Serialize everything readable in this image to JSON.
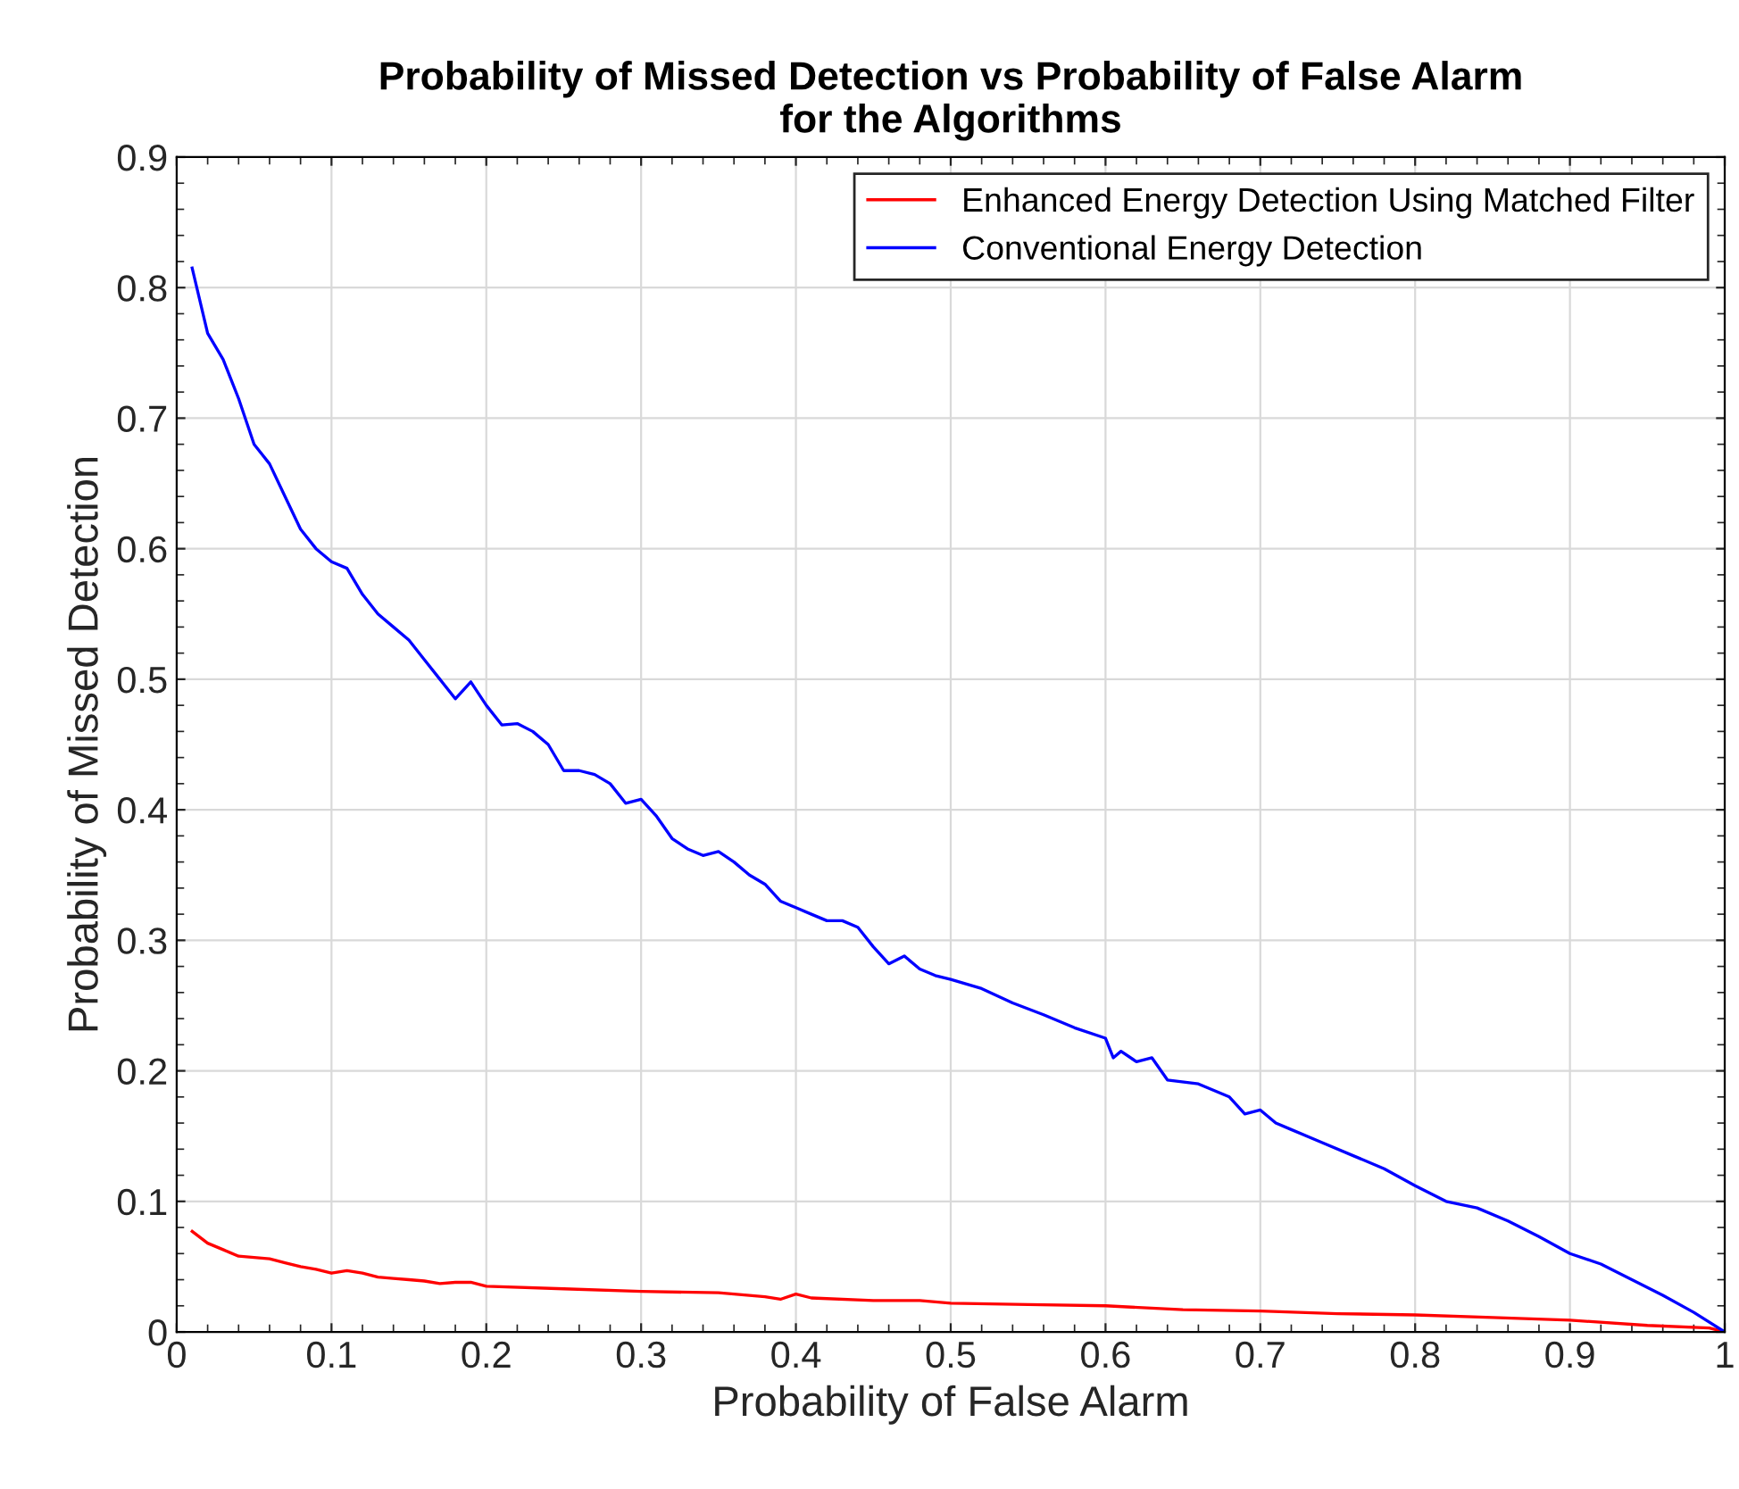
{
  "chart_data": {
    "type": "line",
    "title": "Probability of Missed Detection vs Probability of False Alarm\nfor the Algorithms",
    "xlabel": "Probability of False Alarm",
    "ylabel": "Probability of Missed Detection",
    "xlim": [
      0,
      1
    ],
    "ylim": [
      0,
      0.9
    ],
    "xticks": [
      0,
      0.1,
      0.2,
      0.3,
      0.4,
      0.5,
      0.6,
      0.7,
      0.8,
      0.9,
      1
    ],
    "yticks": [
      0,
      0.1,
      0.2,
      0.3,
      0.4,
      0.5,
      0.6,
      0.7,
      0.8,
      0.9
    ],
    "grid": true,
    "legend": "top right",
    "line_style": "solid",
    "marker": "none",
    "series": [
      {
        "name": "Enhanced Energy Detection Using Matched Filter",
        "color": "#ff0000",
        "x": [
          0.01,
          0.02,
          0.03,
          0.04,
          0.05,
          0.06,
          0.07,
          0.08,
          0.09,
          0.1,
          0.11,
          0.12,
          0.13,
          0.14,
          0.15,
          0.16,
          0.17,
          0.18,
          0.19,
          0.2,
          0.25,
          0.3,
          0.35,
          0.38,
          0.39,
          0.4,
          0.41,
          0.45,
          0.48,
          0.5,
          0.55,
          0.6,
          0.65,
          0.7,
          0.75,
          0.8,
          0.85,
          0.9,
          0.95,
          0.99,
          1.0
        ],
        "values": [
          0.077,
          0.068,
          0.063,
          0.058,
          0.057,
          0.056,
          0.053,
          0.05,
          0.048,
          0.045,
          0.047,
          0.045,
          0.042,
          0.041,
          0.04,
          0.039,
          0.037,
          0.038,
          0.038,
          0.035,
          0.033,
          0.031,
          0.03,
          0.027,
          0.025,
          0.029,
          0.026,
          0.024,
          0.024,
          0.022,
          0.021,
          0.02,
          0.017,
          0.016,
          0.014,
          0.013,
          0.011,
          0.009,
          0.005,
          0.003,
          0.0
        ]
      },
      {
        "name": "Conventional Energy Detection",
        "color": "#0000ff",
        "x": [
          0.01,
          0.02,
          0.03,
          0.04,
          0.05,
          0.06,
          0.07,
          0.08,
          0.09,
          0.1,
          0.11,
          0.12,
          0.13,
          0.14,
          0.15,
          0.16,
          0.17,
          0.18,
          0.19,
          0.2,
          0.21,
          0.22,
          0.23,
          0.24,
          0.25,
          0.26,
          0.27,
          0.28,
          0.29,
          0.3,
          0.31,
          0.32,
          0.33,
          0.34,
          0.35,
          0.36,
          0.37,
          0.38,
          0.39,
          0.4,
          0.41,
          0.42,
          0.43,
          0.44,
          0.45,
          0.46,
          0.47,
          0.48,
          0.49,
          0.5,
          0.52,
          0.54,
          0.56,
          0.58,
          0.6,
          0.605,
          0.61,
          0.62,
          0.63,
          0.64,
          0.66,
          0.68,
          0.69,
          0.7,
          0.71,
          0.72,
          0.74,
          0.76,
          0.78,
          0.8,
          0.82,
          0.84,
          0.86,
          0.88,
          0.9,
          0.92,
          0.94,
          0.96,
          0.98,
          1.0
        ],
        "values": [
          0.815,
          0.765,
          0.745,
          0.715,
          0.68,
          0.665,
          0.64,
          0.615,
          0.6,
          0.59,
          0.585,
          0.565,
          0.55,
          0.54,
          0.53,
          0.515,
          0.5,
          0.485,
          0.498,
          0.48,
          0.465,
          0.466,
          0.46,
          0.45,
          0.43,
          0.43,
          0.427,
          0.42,
          0.405,
          0.408,
          0.395,
          0.378,
          0.37,
          0.365,
          0.368,
          0.36,
          0.35,
          0.343,
          0.33,
          0.325,
          0.32,
          0.315,
          0.315,
          0.31,
          0.295,
          0.282,
          0.288,
          0.278,
          0.273,
          0.27,
          0.263,
          0.252,
          0.243,
          0.233,
          0.225,
          0.21,
          0.215,
          0.207,
          0.21,
          0.193,
          0.19,
          0.18,
          0.167,
          0.17,
          0.16,
          0.155,
          0.145,
          0.135,
          0.125,
          0.112,
          0.1,
          0.095,
          0.085,
          0.073,
          0.06,
          0.052,
          0.04,
          0.028,
          0.015,
          0.0
        ]
      }
    ]
  }
}
